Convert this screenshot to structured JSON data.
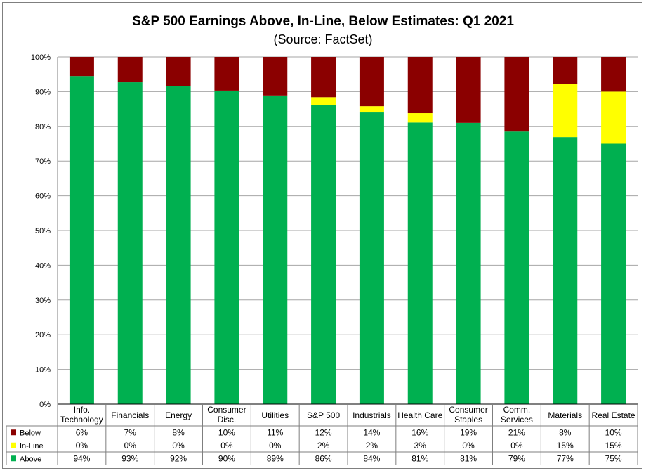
{
  "chart_data": {
    "type": "bar",
    "stacked": true,
    "title": "S&P 500 Earnings Above, In-Line, Below Estimates: Q1 2021",
    "subtitle": "(Source: FactSet)",
    "xlabel": "",
    "ylabel": "",
    "ylim": [
      0,
      100
    ],
    "yticks": [
      "0%",
      "10%",
      "20%",
      "30%",
      "40%",
      "50%",
      "60%",
      "70%",
      "80%",
      "90%",
      "100%"
    ],
    "grid": true,
    "legend": "data-table-left",
    "categories": [
      [
        "Info.",
        "Technology"
      ],
      [
        "Financials"
      ],
      [
        "Energy"
      ],
      [
        "Consumer",
        "Disc."
      ],
      [
        "Utilities"
      ],
      [
        "S&P 500"
      ],
      [
        "Industrials"
      ],
      [
        "Health Care"
      ],
      [
        "Consumer",
        "Staples"
      ],
      [
        "Comm.",
        "Services"
      ],
      [
        "Materials"
      ],
      [
        "Real Estate"
      ]
    ],
    "series": [
      {
        "name": "Below",
        "color": "#8b0000",
        "values": [
          6,
          7,
          8,
          10,
          11,
          12,
          14,
          16,
          19,
          21,
          8,
          10
        ],
        "labels": [
          "6%",
          "7%",
          "8%",
          "10%",
          "11%",
          "12%",
          "14%",
          "16%",
          "19%",
          "21%",
          "8%",
          "10%"
        ]
      },
      {
        "name": "In-Line",
        "color": "#ffff00",
        "values": [
          0,
          0,
          0,
          0,
          0,
          2,
          2,
          3,
          0,
          0,
          15,
          15
        ],
        "labels": [
          "0%",
          "0%",
          "0%",
          "0%",
          "0%",
          "2%",
          "2%",
          "3%",
          "0%",
          "0%",
          "15%",
          "15%"
        ]
      },
      {
        "name": "Above",
        "color": "#00b050",
        "values": [
          94,
          93,
          92,
          90,
          89,
          86,
          84,
          81,
          81,
          79,
          77,
          75
        ],
        "labels": [
          "94%",
          "93%",
          "92%",
          "90%",
          "89%",
          "86%",
          "84%",
          "81%",
          "81%",
          "79%",
          "77%",
          "75%"
        ]
      }
    ],
    "bar_values": {
      "above": [
        94.5,
        92.7,
        91.7,
        90.3,
        88.9,
        86.2,
        84.0,
        81.1,
        81.0,
        78.5,
        76.9,
        75.0
      ],
      "inline": [
        0,
        0,
        0,
        0,
        0,
        2.2,
        1.8,
        2.7,
        0,
        0,
        15.4,
        15.0
      ]
    }
  }
}
